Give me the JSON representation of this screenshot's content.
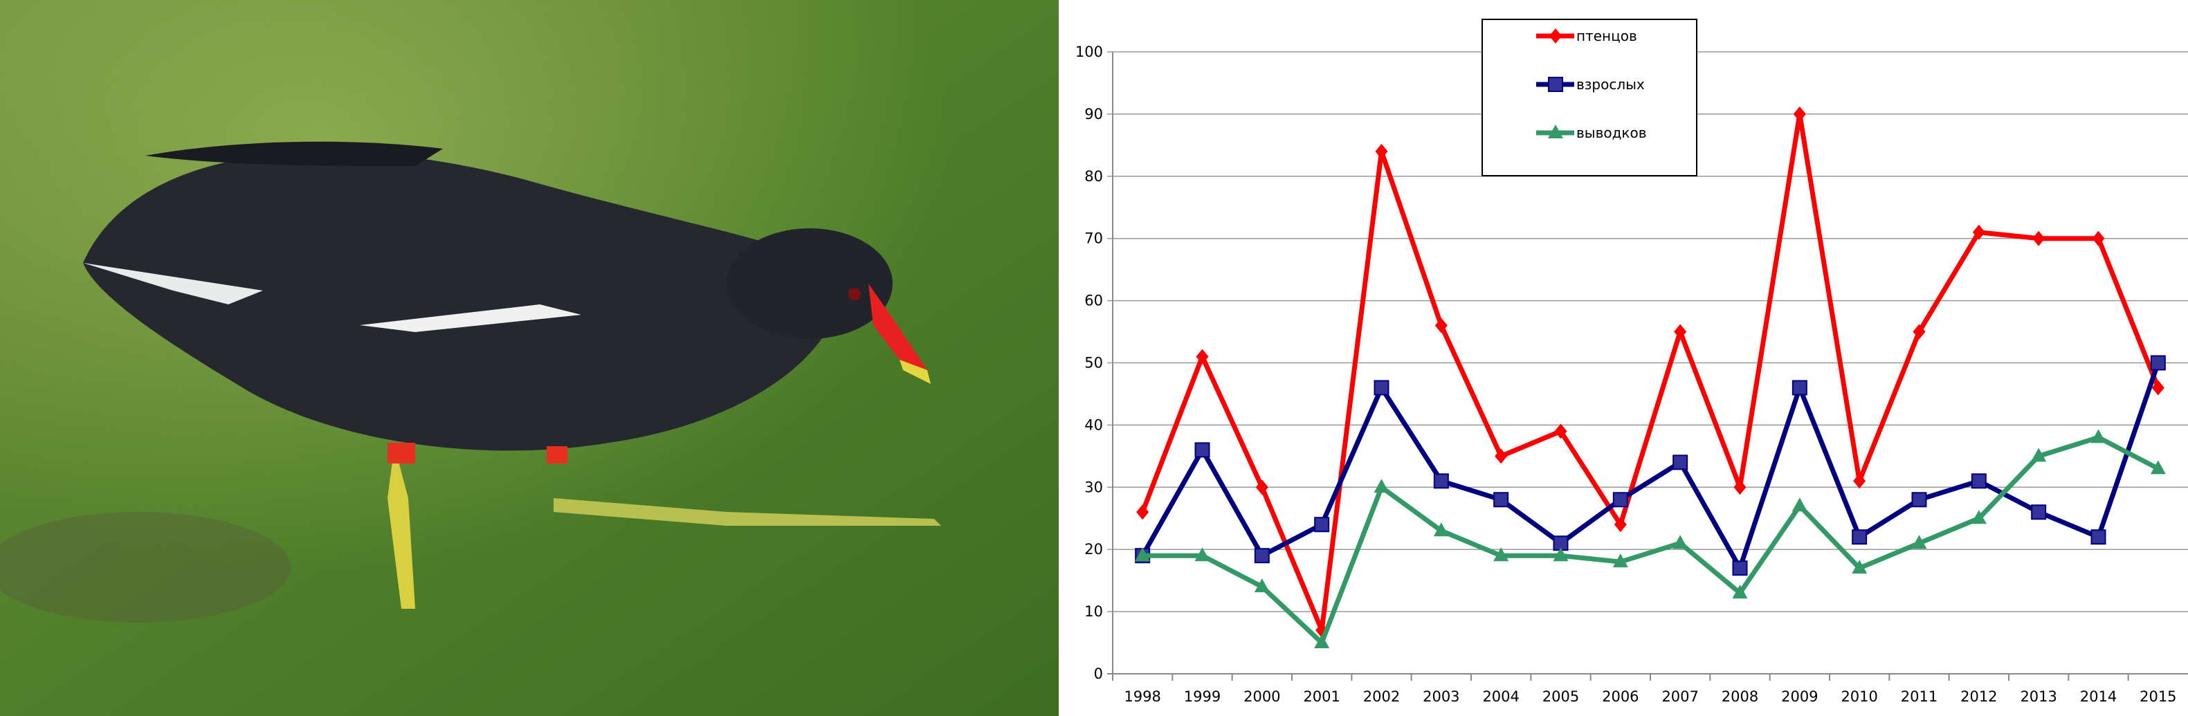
{
  "photo": {
    "subject": "moorhen"
  },
  "chart_data": {
    "type": "line",
    "title": "",
    "xlabel": "",
    "ylabel": "",
    "x": [
      "1998",
      "1999",
      "2000",
      "2001",
      "2002",
      "2003",
      "2004",
      "2005",
      "2006",
      "2007",
      "2008",
      "2009",
      "2010",
      "2011",
      "2012",
      "2013",
      "2014",
      "2015"
    ],
    "ylim": [
      0,
      100
    ],
    "yticks": [
      0,
      10,
      20,
      30,
      40,
      50,
      60,
      70,
      80,
      90,
      100
    ],
    "grid": true,
    "legend": "top-center",
    "series": [
      {
        "name": "птенцов",
        "color": "#ff0000",
        "marker": "diamond",
        "values": [
          26,
          51,
          30,
          7,
          84,
          56,
          35,
          39,
          24,
          55,
          30,
          90,
          31,
          55,
          71,
          70,
          70,
          46
        ]
      },
      {
        "name": "взрослых",
        "color": "#000080",
        "marker": "square",
        "values": [
          19,
          36,
          19,
          24,
          46,
          31,
          28,
          21,
          28,
          34,
          17,
          46,
          22,
          28,
          31,
          26,
          22,
          50
        ]
      },
      {
        "name": "выводков",
        "color": "#339966",
        "marker": "triangle",
        "values": [
          19,
          19,
          14,
          5,
          30,
          23,
          19,
          19,
          18,
          21,
          13,
          27,
          17,
          21,
          25,
          35,
          38,
          33
        ]
      }
    ]
  }
}
